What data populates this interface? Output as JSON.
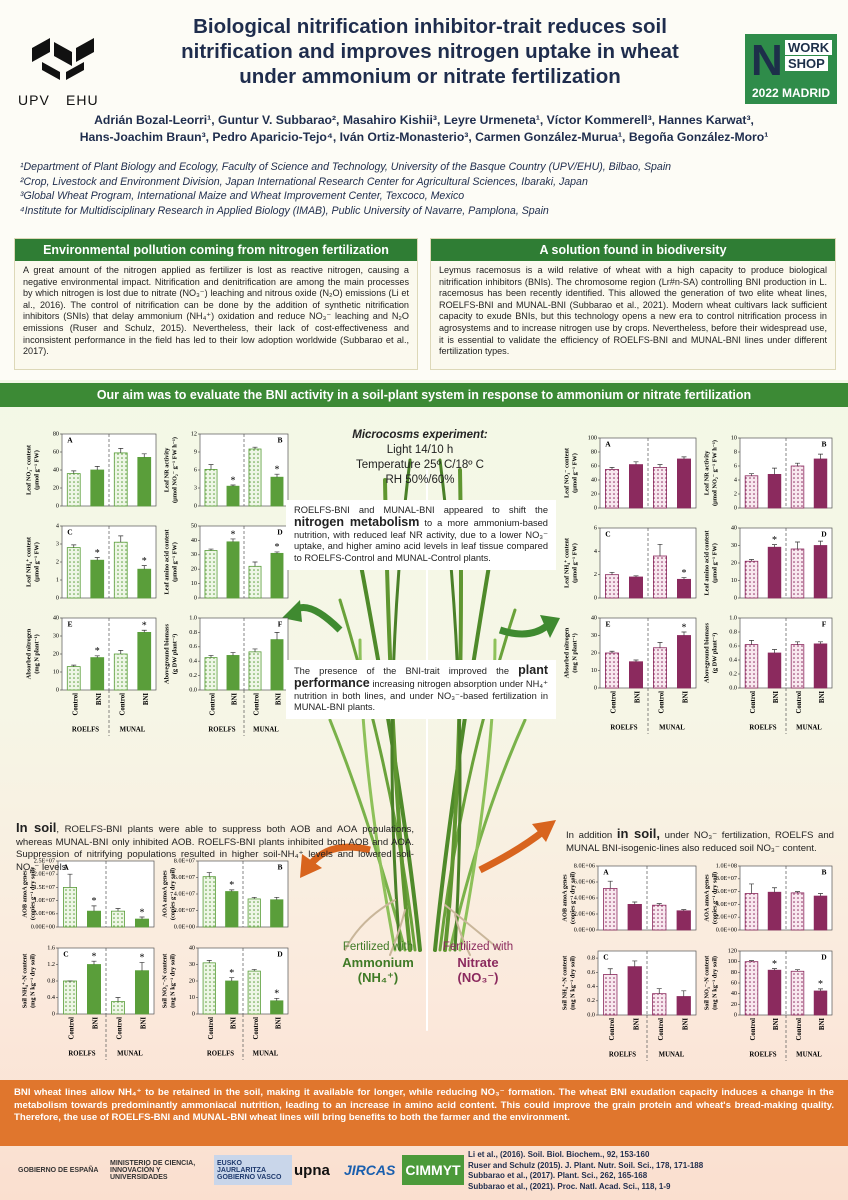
{
  "header": {
    "title": [
      "Biological nitrification inhibitor-trait reduces soil",
      "nitrification and improves nitrogen uptake in wheat",
      "under ammonium or nitrate fertilization"
    ],
    "logo": [
      "UPV",
      "EHU"
    ],
    "workshop": [
      "WORK",
      "SHOP",
      "2022 MADRID"
    ],
    "authors": [
      "Adrián Bozal-Leorri¹, Guntur V. Subbarao², Masahiro Kishii³, Leyre Urmeneta¹, Víctor Kommerell³, Hannes Karwat³,",
      "Hans-Joachim Braun³, Pedro Aparicio-Tejo⁴, Iván Ortiz-Monasterio³, Carmen González-Murua¹, Begoña González-Moro¹"
    ],
    "affiliations": [
      "¹Department of Plant Biology and Ecology, Faculty of Science and Technology, University of the Basque Country (UPV/EHU), Bilbao, Spain",
      "²Crop, Livestock and Environment Division, Japan International Research Center for Agricultural Sciences, Ibaraki, Japan",
      "³Global Wheat Program, International Maize and Wheat Improvement Center, Texcoco, Mexico",
      "⁴Institute for Multidisciplinary Research in Applied Biology (IMAB), Public University of Navarre, Pamplona, Spain"
    ]
  },
  "intro": {
    "heading": "Environmental pollution coming from nitrogen fertilization",
    "text": "A great amount of the nitrogen applied as fertilizer is lost as reactive nitrogen, causing a negative environmental impact. Nitrification and denitrification are among the main processes by which nitrogen is lost due to nitrate (NO₃⁻) leaching and nitrous oxide (N₂O) emissions (Li et al., 2016). The control of nitrification can be done by the addition of synthetic nitrification inhibitors (SNIs) that delay ammonium (NH₄⁺) oxidation and reduce NO₃⁻ leaching and N₂O emissions (Ruser and Schulz, 2015). Nevertheless, their lack of cost-effectiveness and inconsistent performance in the field has led to their low adoption worldwide (Subbarao et al., 2017)."
  },
  "solution": {
    "heading": "A solution found in biodiversity",
    "text": "Leymus racemosus is a wild relative of wheat with a high capacity to produce biological nitrification inhibitors (BNIs). The chromosome region (Lr#n-SA) controlling BNI production in L. racemosus has been recently identified. This allowed the generation of two elite wheat lines, ROELFS-BNI and MUNAL-BNI (Subbarao et al., 2021). Modern wheat cultivars lack sufficient capacity to exude BNIs, but this technology opens a new era to control nitrification process in agrosystems and to increase nitrogen use by crops. Nevertheless, before their widespread use, it is essential to validate the efficiency of ROELFS-BNI and MUNAL-BNI lines under different fertilization types."
  },
  "aim": "Our aim was to evaluate the BNI activity in a soil-plant system in response to ammonium or nitrate fertilization",
  "experiment": [
    "Microcosms experiment:",
    "Light 14/10 h",
    "Temperature 25º C/18º C",
    "RH 50%/60%"
  ],
  "callout_metabolism": [
    "ROELFS-BNI and MUNAL-BNI appeared to shift the ",
    "nitrogen metabolism",
    " to a more ammonium-based nutrition, with reduced leaf NR activity, due to a lower NO₃⁻ uptake, and higher amino acid levels in leaf tissue compared to ROELFS-Control and MUNAL-Control plants."
  ],
  "callout_performance": [
    "The presence of the BNI-trait improved the ",
    "plant performance",
    " increasing nitrogen absorption under NH₄⁺ nutrition in both lines, and under NO₃⁻-based fertilization in MUNAL-BNI plants."
  ],
  "soil_ammonium": [
    "In soil",
    ", ROELFS-BNI plants were able to suppress both AOB and AOA populations, whereas MUNAL-BNI only inhibited AOB. ROELFS-BNI plants inhibited both AOB and AOA. Suppression of nitrifying populations resulted in higher soil-NH₄⁺ levels and lowered soil-NO₃⁻ levels."
  ],
  "soil_nitrate": [
    "In addition ",
    "in soil,",
    " under NO₃⁻ fertilization, ROELFS and MUNAL BNI-isogenic-lines also reduced soil NO₃⁻ content."
  ],
  "fertilized_ammonium": [
    "Fertilized with",
    "Ammonium",
    "(NH₄⁺)"
  ],
  "fertilized_nitrate": [
    "Fertilized with",
    "Nitrate",
    "(NO₃⁻)"
  ],
  "plant_nh4": {
    "color": "#5a9e3a",
    "categories": [
      "Control",
      "BNI",
      "Control",
      "BNI"
    ],
    "groups": [
      "ROELFS",
      "MUNAL"
    ],
    "star": "*",
    "charts": [
      {
        "type": "bar",
        "letter": "A",
        "ylabel": [
          "Leaf NO₃⁻ content",
          "(µmol g⁻¹ FW)"
        ],
        "ylim": [
          0,
          80
        ],
        "yticks": [
          0,
          20,
          40,
          60,
          80
        ],
        "values": [
          36,
          40,
          59,
          54
        ],
        "errors": [
          3,
          4,
          5,
          4
        ],
        "significant": [
          false,
          false,
          false,
          false
        ]
      },
      {
        "type": "bar",
        "letter": "B",
        "ylabel": [
          "Leaf NR activity",
          "(µmol NO₂⁻ g⁻¹ FW h⁻¹)"
        ],
        "ylim": [
          0,
          12
        ],
        "yticks": [
          0,
          3,
          6,
          9,
          12
        ],
        "values": [
          6.1,
          3.3,
          9.5,
          4.8
        ],
        "errors": [
          0.8,
          0.2,
          0.3,
          0.5
        ],
        "significant": [
          false,
          true,
          false,
          true
        ]
      },
      {
        "type": "bar",
        "letter": "C",
        "ylabel": [
          "Leaf NH₄⁺ content",
          "(µmol g⁻¹ FW)"
        ],
        "ylim": [
          0,
          4
        ],
        "yticks": [
          0,
          1,
          2,
          3,
          4
        ],
        "values": [
          2.8,
          2.1,
          3.1,
          1.6
        ],
        "errors": [
          0.15,
          0.15,
          0.35,
          0.2
        ],
        "significant": [
          false,
          true,
          false,
          true
        ]
      },
      {
        "type": "bar",
        "letter": "D",
        "ylabel": [
          "Leaf amino acid content",
          "(µmol g⁻¹ FW)"
        ],
        "ylim": [
          0,
          50
        ],
        "yticks": [
          0,
          10,
          20,
          30,
          40,
          50
        ],
        "values": [
          33,
          39,
          22,
          31
        ],
        "errors": [
          1,
          2,
          3,
          1
        ],
        "significant": [
          false,
          true,
          false,
          true
        ]
      },
      {
        "type": "bar",
        "letter": "E",
        "ylabel": [
          "Absorbed nitrogen",
          "(mg N plant⁻¹)"
        ],
        "ylim": [
          0,
          40
        ],
        "yticks": [
          0,
          10,
          20,
          30,
          40
        ],
        "values": [
          13,
          18,
          20,
          32
        ],
        "errors": [
          0.8,
          1,
          2,
          1.2
        ],
        "significant": [
          false,
          true,
          false,
          true
        ]
      },
      {
        "type": "bar",
        "letter": "F",
        "ylabel": [
          "Aboveground biomass",
          "(g DW plant⁻¹)"
        ],
        "ylim": [
          0,
          1
        ],
        "yticks": [
          {
            "value": 0,
            "label": "0.0"
          },
          0.2,
          0.4,
          0.6,
          0.8,
          {
            "value": 1,
            "label": "1.0"
          }
        ],
        "values": [
          0.45,
          0.48,
          0.53,
          0.7
        ],
        "errors": [
          0.03,
          0.04,
          0.04,
          0.1
        ],
        "significant": [
          false,
          false,
          false,
          false
        ]
      }
    ]
  },
  "plant_no3": {
    "color": "#8b2a5e",
    "categories": [
      "Control",
      "BNI",
      "Control",
      "BNI"
    ],
    "groups": [
      "ROELFS",
      "MUNAL"
    ],
    "star": "*",
    "charts": [
      {
        "type": "bar",
        "letter": "A",
        "ylabel": [
          "Leaf NO₃⁻ content",
          "(µmol g⁻¹ FW)"
        ],
        "ylim": [
          0,
          100
        ],
        "yticks": [
          0,
          20,
          40,
          60,
          80,
          100
        ],
        "values": [
          55,
          62,
          58,
          70
        ],
        "errors": [
          3,
          4,
          4,
          3
        ],
        "significant": [
          false,
          false,
          false,
          false
        ]
      },
      {
        "type": "bar",
        "letter": "B",
        "ylabel": [
          "Leaf NR activity",
          "(µmol NO₂⁻ g⁻¹ FW h⁻¹)"
        ],
        "ylim": [
          0,
          10
        ],
        "yticks": [
          0,
          2,
          4,
          6,
          8,
          10
        ],
        "values": [
          4.6,
          4.8,
          6,
          7
        ],
        "errors": [
          0.3,
          0.9,
          0.4,
          0.7
        ],
        "significant": [
          false,
          false,
          false,
          false
        ]
      },
      {
        "type": "bar",
        "letter": "C",
        "ylabel": [
          "Leaf NH₄⁺ content",
          "(µmol g⁻¹ FW)"
        ],
        "ylim": [
          0,
          6
        ],
        "yticks": [
          0,
          2,
          4,
          6
        ],
        "values": [
          2,
          1.8,
          3.6,
          1.6
        ],
        "errors": [
          0.2,
          0.1,
          1,
          0.15
        ],
        "significant": [
          false,
          false,
          false,
          true
        ]
      },
      {
        "type": "bar",
        "letter": "D",
        "ylabel": [
          "Leaf amino acid content",
          "(µmol g⁻¹ FW)"
        ],
        "ylim": [
          0,
          40
        ],
        "yticks": [
          0,
          10,
          20,
          30,
          40
        ],
        "values": [
          21,
          29,
          28,
          30
        ],
        "errors": [
          1,
          1.5,
          4,
          2.5
        ],
        "significant": [
          false,
          true,
          false,
          false
        ]
      },
      {
        "type": "bar",
        "letter": "E",
        "ylabel": [
          "Absorbed nitrogen",
          "(mg N plant⁻¹)"
        ],
        "ylim": [
          0,
          40
        ],
        "yticks": [
          0,
          10,
          20,
          30,
          40
        ],
        "values": [
          20,
          15,
          23,
          30
        ],
        "errors": [
          1,
          1,
          3,
          2
        ],
        "significant": [
          false,
          false,
          false,
          true
        ]
      },
      {
        "type": "bar",
        "letter": "F",
        "ylabel": [
          "Aboveground biomass",
          "(g DW plant⁻¹)"
        ],
        "ylim": [
          0,
          1
        ],
        "yticks": [
          {
            "value": 0,
            "label": "0.0"
          },
          0.2,
          0.4,
          0.6,
          0.8,
          {
            "value": 1,
            "label": "1.0"
          }
        ],
        "values": [
          0.62,
          0.5,
          0.62,
          0.63
        ],
        "errors": [
          0.06,
          0.05,
          0.04,
          0.03
        ],
        "significant": [
          false,
          false,
          false,
          false
        ]
      }
    ]
  },
  "soil_nh4": {
    "color": "#5a9e3a",
    "categories": [
      "Control",
      "BNI",
      "Control",
      "BNI"
    ],
    "groups": [
      "ROELFS",
      "MUNAL"
    ],
    "star": "*",
    "charts": [
      {
        "type": "bar",
        "letter": "A",
        "ylabel": [
          "AOB amoA genes",
          "(copies g⁻¹ dry soil)"
        ],
        "ylim": [
          0,
          25000000
        ],
        "yticks": [
          {
            "value": 0,
            "label": "0.00E+00"
          },
          {
            "value": 5000000,
            "label": "5.0E+06"
          },
          {
            "value": 10000000,
            "label": "1.0E+07"
          },
          {
            "value": 15000000,
            "label": "1.5E+07"
          },
          {
            "value": 20000000,
            "label": "2.0E+07"
          },
          {
            "value": 25000000,
            "label": "2.5E+07"
          }
        ],
        "values": [
          15000000,
          6000000,
          6000000,
          3000000
        ],
        "errors": [
          5000000,
          2000000,
          1000000,
          800000
        ],
        "significant": [
          false,
          true,
          false,
          true
        ]
      },
      {
        "type": "bar",
        "letter": "B",
        "ylabel": [
          "AOA amoA genes",
          "(copies g⁻¹ dry soil)"
        ],
        "ylim": [
          0,
          80000000
        ],
        "yticks": [
          {
            "value": 0,
            "label": "0.0E+00"
          },
          {
            "value": 20000000,
            "label": "2.0E+07"
          },
          {
            "value": 40000000,
            "label": "4.0E+07"
          },
          {
            "value": 60000000,
            "label": "6.0E+07"
          },
          {
            "value": 80000000,
            "label": "8.0E+07"
          }
        ],
        "values": [
          61000000,
          43000000,
          34000000,
          33000000
        ],
        "errors": [
          5000000,
          2000000,
          2000000,
          3000000
        ],
        "significant": [
          false,
          true,
          false,
          false
        ]
      },
      {
        "type": "bar",
        "letter": "C",
        "ylabel": [
          "Soil NH₄⁺-N content",
          "(mg N kg⁻¹ dry soil)"
        ],
        "ylim": [
          0,
          1.6
        ],
        "yticks": [
          0,
          0.4,
          0.8,
          1.2,
          1.6
        ],
        "values": [
          0.8,
          1.2,
          0.3,
          1.05
        ],
        "errors": [
          0,
          0.08,
          0.1,
          0.2
        ],
        "significant": [
          false,
          true,
          false,
          true
        ]
      },
      {
        "type": "bar",
        "letter": "D",
        "ylabel": [
          "Soil NO₃⁻-N content",
          "(mg N kg⁻¹ dry soil)"
        ],
        "ylim": [
          0,
          40
        ],
        "yticks": [
          0,
          10,
          20,
          30,
          40
        ],
        "values": [
          31,
          20,
          26,
          8
        ],
        "errors": [
          1.5,
          2,
          1,
          1.5
        ],
        "significant": [
          false,
          true,
          false,
          true
        ]
      }
    ]
  },
  "soil_no3": {
    "color": "#8b2a5e",
    "categories": [
      "Control",
      "BNI",
      "Control",
      "BNI"
    ],
    "groups": [
      "ROELFS",
      "MUNAL"
    ],
    "star": "*",
    "charts": [
      {
        "type": "bar",
        "letter": "A",
        "ylabel": [
          "AOB amoA genes",
          "(copies g⁻¹ dry soil)"
        ],
        "ylim": [
          0,
          8000000
        ],
        "yticks": [
          {
            "value": 0,
            "label": "0.0E+00"
          },
          {
            "value": 2000000,
            "label": "2.0E+06"
          },
          {
            "value": 4000000,
            "label": "4.0E+06"
          },
          {
            "value": 6000000,
            "label": "6.0E+06"
          },
          {
            "value": 8000000,
            "label": "8.0E+06"
          }
        ],
        "values": [
          5200000,
          3200000,
          3100000,
          2400000
        ],
        "errors": [
          900000,
          300000,
          200000,
          150000
        ],
        "significant": [
          false,
          false,
          false,
          false
        ]
      },
      {
        "type": "bar",
        "letter": "B",
        "ylabel": [
          "AOA amoA genes",
          "(copies g⁻¹ dry soil)"
        ],
        "ylim": [
          0,
          100000000
        ],
        "yticks": [
          {
            "value": 0,
            "label": "0.0E+00"
          },
          {
            "value": 20000000,
            "label": "2.0E+07"
          },
          {
            "value": 40000000,
            "label": "4.0E+07"
          },
          {
            "value": 60000000,
            "label": "6.0E+07"
          },
          {
            "value": 80000000,
            "label": "8.0E+07"
          },
          {
            "value": 100000000,
            "label": "1.0E+08"
          }
        ],
        "values": [
          57000000,
          59000000,
          58000000,
          53000000
        ],
        "errors": [
          15000000,
          7000000,
          2000000,
          4000000
        ],
        "significant": [
          false,
          false,
          false,
          false
        ]
      },
      {
        "type": "bar",
        "letter": "C",
        "ylabel": [
          "Soil NH₄⁺-N content",
          "(mg N kg⁻¹ dry soil)"
        ],
        "ylim": [
          0,
          0.9
        ],
        "yticks": [
          {
            "value": 0,
            "label": "0.0"
          },
          0.2,
          0.4,
          0.6,
          0.8
        ],
        "values": [
          0.57,
          0.68,
          0.3,
          0.26
        ],
        "errors": [
          0.08,
          0.08,
          0.07,
          0.08
        ],
        "significant": [
          false,
          false,
          false,
          false
        ]
      },
      {
        "type": "bar",
        "letter": "D",
        "ylabel": [
          "Soil NO₃⁻-N content",
          "(mg N kg⁻¹ dry soil)"
        ],
        "ylim": [
          0,
          120
        ],
        "yticks": [
          0,
          20,
          40,
          60,
          80,
          100,
          120
        ],
        "values": [
          100,
          84,
          82,
          45
        ],
        "errors": [
          2,
          3,
          3,
          4
        ],
        "significant": [
          false,
          true,
          false,
          true
        ]
      }
    ]
  },
  "conclusion": "BNI wheat lines allow NH₄⁺ to be retained in the soil, making it available for longer, while reducing NO₃⁻ formation. The wheat BNI exudation capacity induces a change in the metabolism towards predominantly ammoniacal nutrition, leading to an increase in amino acid content. This could improve the grain protein and wheat's bread-making quality. Therefore, the use of ROELFS-BNI and MUNAL-BNI wheat lines will bring benefits to both the farmer and the environment.",
  "references": [
    "Li et al., (2016). Soil. Biol. Biochem., 92, 153-160",
    "Ruser and Schulz (2015). J. Plant. Nutr. Soil. Sci., 178, 171-188",
    "Subbarao et al., (2017). Plant. Sci., 262, 165-168",
    "Subbarao et al., (2021). Proc. Natl. Acad. Sci., 118, 1-9"
  ],
  "sponsors": [
    "GOBIERNO DE ESPAÑA",
    "MINISTERIO DE CIENCIA, INNOVACIÓN Y UNIVERSIDADES",
    "EUSKO JAURLARITZA GOBIERNO VASCO",
    "upna",
    "JIRCAS",
    "CIMMYT"
  ]
}
